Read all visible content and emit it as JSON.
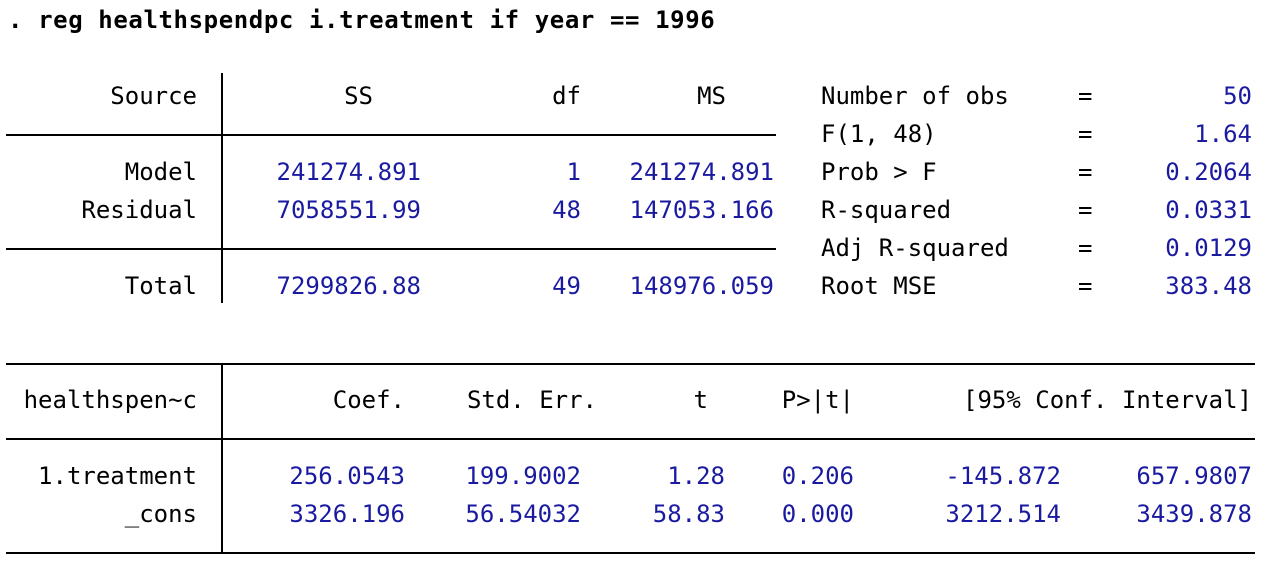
{
  "command": ". reg healthspendpc i.treatment if year == 1996",
  "anova": {
    "headers": {
      "source": "Source",
      "ss": "SS",
      "df": "df",
      "ms": "MS"
    },
    "rows": [
      {
        "source": "Model",
        "ss": "241274.891",
        "df": "1",
        "ms": "241274.891"
      },
      {
        "source": "Residual",
        "ss": "7058551.99",
        "df": "48",
        "ms": "147053.166"
      },
      {
        "source": "Total",
        "ss": "7299826.88",
        "df": "49",
        "ms": "148976.059"
      }
    ]
  },
  "stats": [
    {
      "label": "Number of obs",
      "eq": "=",
      "value": "50"
    },
    {
      "label": "F(1, 48)",
      "eq": "=",
      "value": "1.64"
    },
    {
      "label": "Prob > F",
      "eq": "=",
      "value": "0.2064"
    },
    {
      "label": "R-squared",
      "eq": "=",
      "value": "0.0331"
    },
    {
      "label": "Adj R-squared",
      "eq": "=",
      "value": "0.0129"
    },
    {
      "label": "Root MSE",
      "eq": "=",
      "value": "383.48"
    }
  ],
  "coef_table": {
    "headers": {
      "var": "healthspen~c",
      "coef": "Coef.",
      "se": "Std. Err.",
      "t": "t",
      "p": "P>|t|",
      "ci": "[95% Conf. Interval]"
    },
    "rows": [
      {
        "var": "1.treatment",
        "coef": "256.0543",
        "se": "199.9002",
        "t": "1.28",
        "p": "0.206",
        "ci_low": "-145.872",
        "ci_high": "657.9807"
      },
      {
        "var": "_cons",
        "coef": "3326.196",
        "se": "56.54032",
        "t": "58.83",
        "p": "0.000",
        "ci_low": "3212.514",
        "ci_high": "3439.878"
      }
    ]
  },
  "colors": {
    "text": "#000000",
    "numbers": "#1a1aa0",
    "background": "#ffffff"
  }
}
